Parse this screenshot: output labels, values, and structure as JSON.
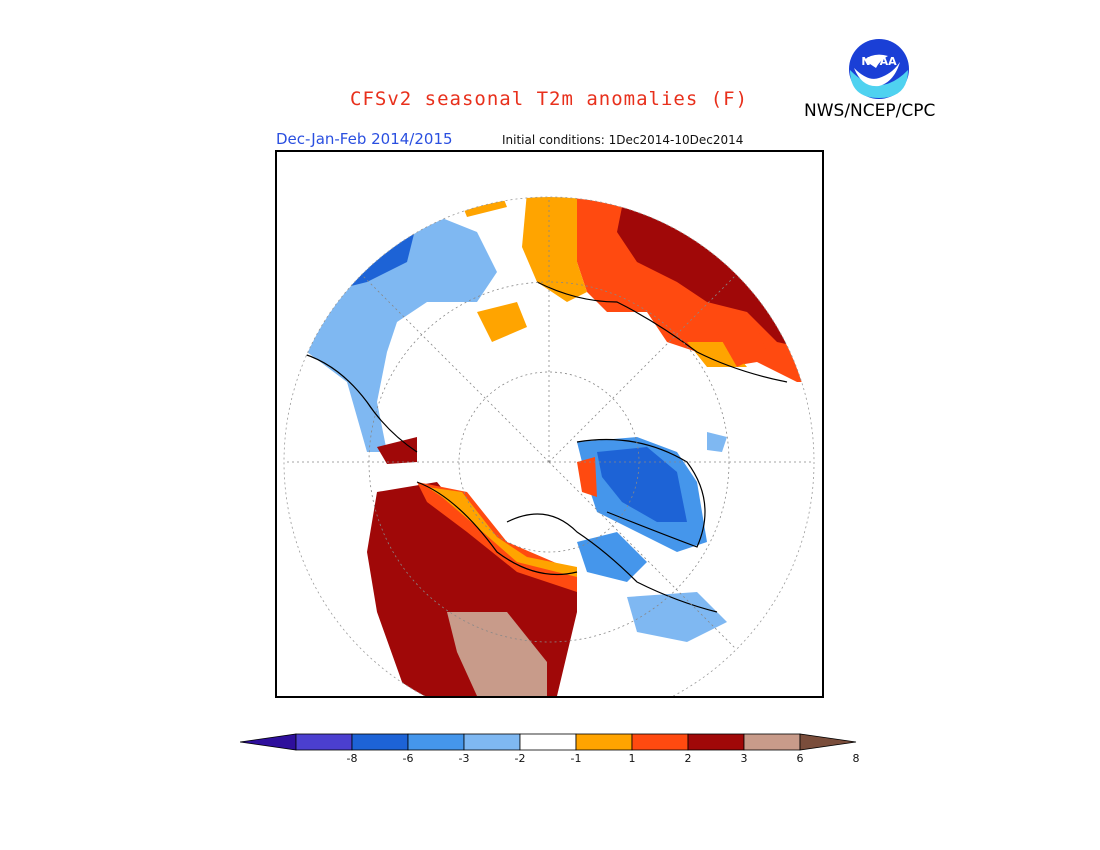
{
  "header": {
    "title": "CFSv2 seasonal T2m anomalies (F)",
    "agency": "NWS/NCEP/CPC",
    "season": "Dec-Jan-Feb 2014/2015",
    "initial_conditions": "Initial conditions: 1Dec2014-10Dec2014"
  },
  "logo": {
    "name": "noaa-logo",
    "text": "NOAA"
  },
  "legend": {
    "colors": [
      "#2e0f9c",
      "#4b3fcf",
      "#1d63d6",
      "#4596eb",
      "#7fb8f2",
      "#ffffff",
      "#ffa400",
      "#ff4a10",
      "#a00808",
      "#c89b8a",
      "#7a4d3b"
    ],
    "ticks": [
      "-8",
      "-6",
      "-3",
      "-2",
      "-1",
      "1",
      "2",
      "3",
      "6",
      "8"
    ]
  }
}
